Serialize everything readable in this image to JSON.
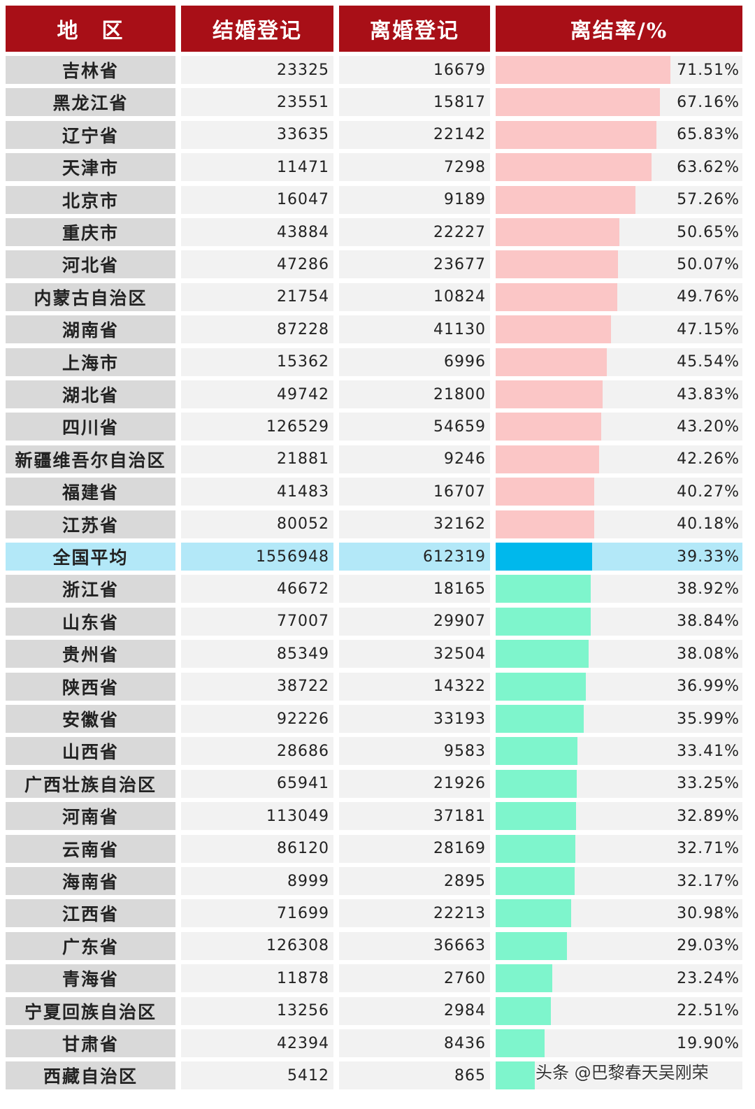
{
  "chart_data": {
    "type": "table",
    "columns": [
      "地　区",
      "结婚登记",
      "离婚登记",
      "离结率/%"
    ],
    "rows": [
      {
        "region": "吉林省",
        "marriage": "23325",
        "divorce": "16679",
        "rate": 71.51,
        "rate_label": "71.51%"
      },
      {
        "region": "黑龙江省",
        "marriage": "23551",
        "divorce": "15817",
        "rate": 67.16,
        "rate_label": "67.16%"
      },
      {
        "region": "辽宁省",
        "marriage": "33635",
        "divorce": "22142",
        "rate": 65.83,
        "rate_label": "65.83%"
      },
      {
        "region": "天津市",
        "marriage": "11471",
        "divorce": "7298",
        "rate": 63.62,
        "rate_label": "63.62%"
      },
      {
        "region": "北京市",
        "marriage": "16047",
        "divorce": "9189",
        "rate": 57.26,
        "rate_label": "57.26%"
      },
      {
        "region": "重庆市",
        "marriage": "43884",
        "divorce": "22227",
        "rate": 50.65,
        "rate_label": "50.65%"
      },
      {
        "region": "河北省",
        "marriage": "47286",
        "divorce": "23677",
        "rate": 50.07,
        "rate_label": "50.07%"
      },
      {
        "region": "内蒙古自治区",
        "marriage": "21754",
        "divorce": "10824",
        "rate": 49.76,
        "rate_label": "49.76%"
      },
      {
        "region": "湖南省",
        "marriage": "87228",
        "divorce": "41130",
        "rate": 47.15,
        "rate_label": "47.15%"
      },
      {
        "region": "上海市",
        "marriage": "15362",
        "divorce": "6996",
        "rate": 45.54,
        "rate_label": "45.54%"
      },
      {
        "region": "湖北省",
        "marriage": "49742",
        "divorce": "21800",
        "rate": 43.83,
        "rate_label": "43.83%"
      },
      {
        "region": "四川省",
        "marriage": "126529",
        "divorce": "54659",
        "rate": 43.2,
        "rate_label": "43.20%"
      },
      {
        "region": "新疆维吾尔自治区",
        "marriage": "21881",
        "divorce": "9246",
        "rate": 42.26,
        "rate_label": "42.26%"
      },
      {
        "region": "福建省",
        "marriage": "41483",
        "divorce": "16707",
        "rate": 40.27,
        "rate_label": "40.27%"
      },
      {
        "region": "江苏省",
        "marriage": "80052",
        "divorce": "32162",
        "rate": 40.18,
        "rate_label": "40.18%"
      },
      {
        "region": "全国平均",
        "marriage": "1556948",
        "divorce": "612319",
        "rate": 39.33,
        "rate_label": "39.33%",
        "average": true
      },
      {
        "region": "浙江省",
        "marriage": "46672",
        "divorce": "18165",
        "rate": 38.92,
        "rate_label": "38.92%"
      },
      {
        "region": "山东省",
        "marriage": "77007",
        "divorce": "29907",
        "rate": 38.84,
        "rate_label": "38.84%"
      },
      {
        "region": "贵州省",
        "marriage": "85349",
        "divorce": "32504",
        "rate": 38.08,
        "rate_label": "38.08%"
      },
      {
        "region": "陕西省",
        "marriage": "38722",
        "divorce": "14322",
        "rate": 36.99,
        "rate_label": "36.99%"
      },
      {
        "region": "安徽省",
        "marriage": "92226",
        "divorce": "33193",
        "rate": 35.99,
        "rate_label": "35.99%"
      },
      {
        "region": "山西省",
        "marriage": "28686",
        "divorce": "9583",
        "rate": 33.41,
        "rate_label": "33.41%"
      },
      {
        "region": "广西壮族自治区",
        "marriage": "65941",
        "divorce": "21926",
        "rate": 33.25,
        "rate_label": "33.25%"
      },
      {
        "region": "河南省",
        "marriage": "113049",
        "divorce": "37181",
        "rate": 32.89,
        "rate_label": "32.89%"
      },
      {
        "region": "云南省",
        "marriage": "86120",
        "divorce": "28169",
        "rate": 32.71,
        "rate_label": "32.71%"
      },
      {
        "region": "海南省",
        "marriage": "8999",
        "divorce": "2895",
        "rate": 32.17,
        "rate_label": "32.17%"
      },
      {
        "region": "江西省",
        "marriage": "71699",
        "divorce": "22213",
        "rate": 30.98,
        "rate_label": "30.98%"
      },
      {
        "region": "广东省",
        "marriage": "126308",
        "divorce": "36663",
        "rate": 29.03,
        "rate_label": "29.03%"
      },
      {
        "region": "青海省",
        "marriage": "11878",
        "divorce": "2760",
        "rate": 23.24,
        "rate_label": "23.24%"
      },
      {
        "region": "宁夏回族自治区",
        "marriage": "13256",
        "divorce": "2984",
        "rate": 22.51,
        "rate_label": "22.51%"
      },
      {
        "region": "甘肃省",
        "marriage": "42394",
        "divorce": "8436",
        "rate": 19.9,
        "rate_label": "19.90%"
      },
      {
        "region": "西藏自治区",
        "marriage": "5412",
        "divorce": "865",
        "rate": 15.98,
        "rate_label": ""
      }
    ],
    "bar_colors": {
      "above": "#fbc6c6",
      "average": "#00b8ec",
      "below": "#7ef5cc"
    },
    "header_color": "#a80f17"
  },
  "watermark": "头条 @巴黎春天吴刚荣"
}
